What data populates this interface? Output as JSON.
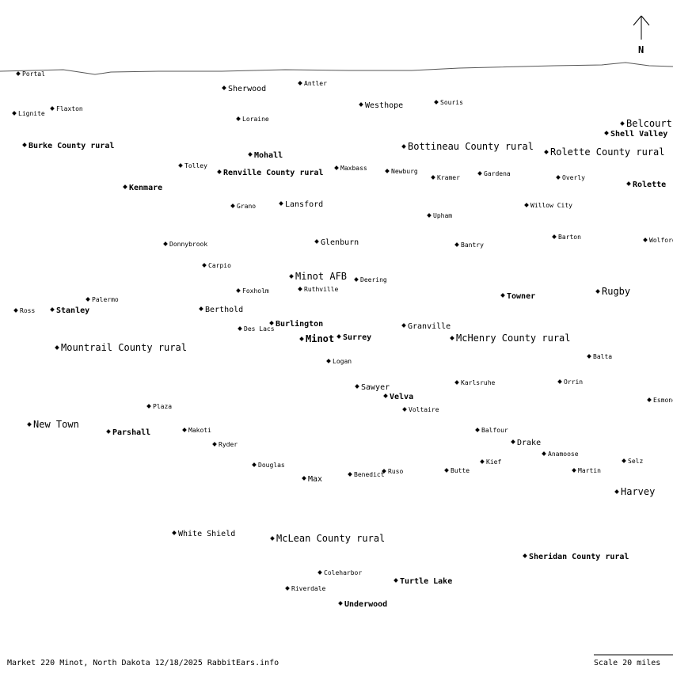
{
  "compass": {
    "label": "N"
  },
  "footer": {
    "caption": "Market 220 Minot, North Dakota 12/18/2025 RabbitEars.info",
    "scale": "Scale 20 miles"
  },
  "places": [
    {
      "name": "Portal"
    },
    {
      "name": "Sherwood"
    },
    {
      "name": "Antler"
    },
    {
      "name": "Westhope"
    },
    {
      "name": "Souris"
    },
    {
      "name": "Lignite"
    },
    {
      "name": "Flaxton"
    },
    {
      "name": "Loraine"
    },
    {
      "name": "Belcourt"
    },
    {
      "name": "Shell Valley"
    },
    {
      "name": "Burke County rural"
    },
    {
      "name": "Bottineau County rural"
    },
    {
      "name": "Rolette County rural"
    },
    {
      "name": "Mohall"
    },
    {
      "name": "Tolley"
    },
    {
      "name": "Renville County rural"
    },
    {
      "name": "Maxbass"
    },
    {
      "name": "Newburg"
    },
    {
      "name": "Kramer"
    },
    {
      "name": "Gardena"
    },
    {
      "name": "Overly"
    },
    {
      "name": "Kenmare"
    },
    {
      "name": "Rolette"
    },
    {
      "name": "Lansford"
    },
    {
      "name": "Grano"
    },
    {
      "name": "Willow City"
    },
    {
      "name": "Upham"
    },
    {
      "name": "Barton"
    },
    {
      "name": "Glenburn"
    },
    {
      "name": "Donnybrook"
    },
    {
      "name": "Bantry"
    },
    {
      "name": "Wolford"
    },
    {
      "name": "Carpio"
    },
    {
      "name": "Minot AFB"
    },
    {
      "name": "Deering"
    },
    {
      "name": "Foxholm"
    },
    {
      "name": "Ruthville"
    },
    {
      "name": "Towner"
    },
    {
      "name": "Rugby"
    },
    {
      "name": "Palermo"
    },
    {
      "name": "Ross"
    },
    {
      "name": "Stanley"
    },
    {
      "name": "Berthold"
    },
    {
      "name": "Burlington"
    },
    {
      "name": "Des Lacs"
    },
    {
      "name": "Granville"
    },
    {
      "name": "Minot"
    },
    {
      "name": "Surrey"
    },
    {
      "name": "McHenry County rural"
    },
    {
      "name": "Mountrail County rural"
    },
    {
      "name": "Balta"
    },
    {
      "name": "Logan"
    },
    {
      "name": "Karlsruhe"
    },
    {
      "name": "Orrin"
    },
    {
      "name": "Sawyer"
    },
    {
      "name": "Velva"
    },
    {
      "name": "Voltaire"
    },
    {
      "name": "Esmond"
    },
    {
      "name": "Plaza"
    },
    {
      "name": "New Town"
    },
    {
      "name": "Parshall"
    },
    {
      "name": "Makoti"
    },
    {
      "name": "Balfour"
    },
    {
      "name": "Drake"
    },
    {
      "name": "Ryder"
    },
    {
      "name": "Anamoose"
    },
    {
      "name": "Douglas"
    },
    {
      "name": "Kief"
    },
    {
      "name": "Selz"
    },
    {
      "name": "Butte"
    },
    {
      "name": "Martin"
    },
    {
      "name": "Ruso"
    },
    {
      "name": "Benedict"
    },
    {
      "name": "Max"
    },
    {
      "name": "Harvey"
    },
    {
      "name": "White Shield"
    },
    {
      "name": "McLean County rural"
    },
    {
      "name": "Sheridan County rural"
    },
    {
      "name": "Coleharbor"
    },
    {
      "name": "Turtle Lake"
    },
    {
      "name": "Riverdale"
    },
    {
      "name": "Underwood"
    }
  ]
}
